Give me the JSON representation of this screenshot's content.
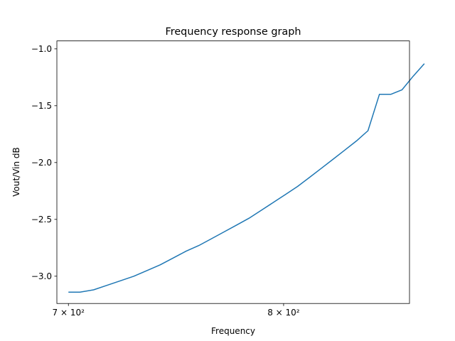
{
  "chart_data": {
    "type": "line",
    "title": "Frequency response graph",
    "xlabel": "Frequency",
    "ylabel": "Vout/Vin dB",
    "xscale": "log",
    "xlim": [
      695,
      865
    ],
    "ylim": [
      -3.24,
      -0.93
    ],
    "grid": false,
    "x_ticks": [
      {
        "value": 700,
        "label": "7 × 10²"
      },
      {
        "value": 800,
        "label": "8 × 10²"
      }
    ],
    "y_ticks": [
      {
        "value": -1.0,
        "label": "−1.0"
      },
      {
        "value": -1.5,
        "label": "−1.5"
      },
      {
        "value": -2.0,
        "label": "−2.0"
      },
      {
        "value": -2.5,
        "label": "−2.5"
      },
      {
        "value": -3.0,
        "label": "−3.0"
      }
    ],
    "series": [
      {
        "color": "#1f77b4",
        "x": [
          700,
          705,
          711,
          717,
          723,
          729,
          735,
          741,
          747,
          753,
          759,
          765,
          771,
          777,
          783,
          789,
          795,
          801,
          807,
          813,
          819,
          825,
          831,
          837,
          843,
          849,
          855
        ],
        "y": [
          -3.14,
          -3.14,
          -3.12,
          -3.08,
          -3.04,
          -3.0,
          -2.95,
          -2.9,
          -2.84,
          -2.78,
          -2.73,
          -2.67,
          -2.61,
          -2.55,
          -2.49,
          -2.42,
          -2.35,
          -2.28,
          -2.21,
          -2.13,
          -2.05,
          -1.97,
          -1.89,
          -1.81,
          -1.72,
          -1.4,
          -1.4
        ]
      }
    ]
  },
  "tail_points": {
    "x": [
      861,
      867,
      873
    ],
    "y": [
      -1.36,
      -1.24,
      -1.13
    ]
  }
}
